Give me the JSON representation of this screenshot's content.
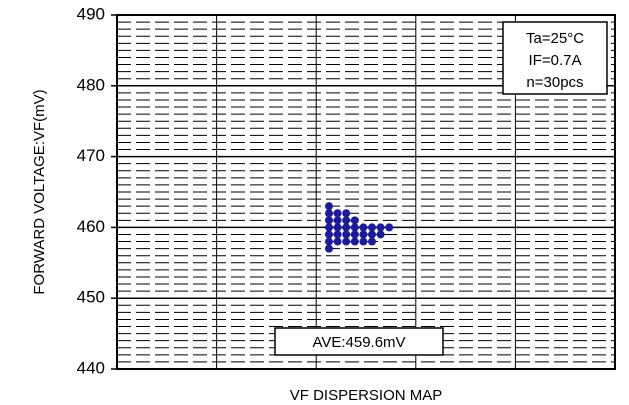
{
  "chart_data": {
    "type": "scatter",
    "xlabel": "VF DISPERSION MAP",
    "ylabel": "FORWARD VOLTAGE:VF(mV)",
    "ylim": [
      440,
      490
    ],
    "yticks": [
      440,
      450,
      460,
      470,
      480,
      490
    ],
    "grid": true,
    "conditions": [
      "Ta=25°C",
      "IF=0.7A",
      "n=30pcs"
    ],
    "average_label": "AVE:459.6mV",
    "marker_color": "#1a1a9a",
    "points": [
      {
        "x": 0,
        "y": 463
      },
      {
        "x": 0,
        "y": 462
      },
      {
        "x": 0,
        "y": 461
      },
      {
        "x": 0,
        "y": 460
      },
      {
        "x": 0,
        "y": 459
      },
      {
        "x": 0,
        "y": 458
      },
      {
        "x": 0,
        "y": 457
      },
      {
        "x": 1,
        "y": 462
      },
      {
        "x": 1,
        "y": 461
      },
      {
        "x": 1,
        "y": 460
      },
      {
        "x": 1,
        "y": 459
      },
      {
        "x": 1,
        "y": 458
      },
      {
        "x": 2,
        "y": 462
      },
      {
        "x": 2,
        "y": 461
      },
      {
        "x": 2,
        "y": 460
      },
      {
        "x": 2,
        "y": 459
      },
      {
        "x": 2,
        "y": 458
      },
      {
        "x": 3,
        "y": 461
      },
      {
        "x": 3,
        "y": 460
      },
      {
        "x": 3,
        "y": 459
      },
      {
        "x": 3,
        "y": 458
      },
      {
        "x": 4,
        "y": 460
      },
      {
        "x": 4,
        "y": 459
      },
      {
        "x": 4,
        "y": 458
      },
      {
        "x": 5,
        "y": 460
      },
      {
        "x": 5,
        "y": 459
      },
      {
        "x": 5,
        "y": 458
      },
      {
        "x": 6,
        "y": 460
      },
      {
        "x": 6,
        "y": 459
      },
      {
        "x": 7,
        "y": 460
      }
    ]
  }
}
